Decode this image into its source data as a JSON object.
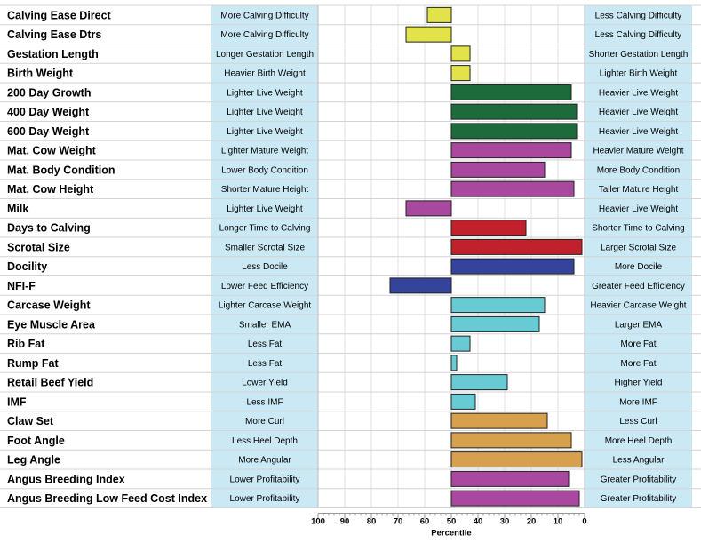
{
  "chart_data": {
    "type": "bar",
    "orientation": "horizontal",
    "title": "",
    "xlabel": "Percentile",
    "xlim": [
      100,
      0
    ],
    "baseline": 50,
    "xticks": [
      "100",
      "90",
      "80",
      "70",
      "60",
      "50",
      "40",
      "30",
      "20",
      "10",
      "0"
    ],
    "grid": true,
    "colors": {
      "yellow": "#e2e24a",
      "green": "#1d6b3a",
      "magenta": "#a8489e",
      "red": "#c0212a",
      "blue": "#34449a",
      "cyan": "#68cbd3",
      "orange": "#d6a04c",
      "panel": "#cbe9f5",
      "border": "#222222"
    },
    "rows": [
      {
        "trait": "Calving Ease Direct",
        "left": "More Calving Difficulty",
        "right": "Less Calving Difficulty",
        "value": 59,
        "color": "yellow"
      },
      {
        "trait": "Calving Ease Dtrs",
        "left": "More Calving Difficulty",
        "right": "Less Calving Difficulty",
        "value": 67,
        "color": "yellow"
      },
      {
        "trait": "Gestation Length",
        "left": "Longer Gestation Length",
        "right": "Shorter Gestation Length",
        "value": 43,
        "color": "yellow"
      },
      {
        "trait": "Birth Weight",
        "left": "Heavier Birth Weight",
        "right": "Lighter Birth Weight",
        "value": 43,
        "color": "yellow"
      },
      {
        "trait": "200 Day Growth",
        "left": "Lighter Live Weight",
        "right": "Heavier Live Weight",
        "value": 5,
        "color": "green"
      },
      {
        "trait": "400 Day Weight",
        "left": "Lighter Live Weight",
        "right": "Heavier Live Weight",
        "value": 3,
        "color": "green"
      },
      {
        "trait": "600 Day Weight",
        "left": "Lighter Live Weight",
        "right": "Heavier Live Weight",
        "value": 3,
        "color": "green"
      },
      {
        "trait": "Mat. Cow Weight",
        "left": "Lighter Mature Weight",
        "right": "Heavier Mature Weight",
        "value": 5,
        "color": "magenta"
      },
      {
        "trait": "Mat. Body Condition",
        "left": "Lower Body Condition",
        "right": "More Body Condition",
        "value": 15,
        "color": "magenta"
      },
      {
        "trait": "Mat. Cow Height",
        "left": "Shorter Mature Height",
        "right": "Taller Mature Height",
        "value": 4,
        "color": "magenta"
      },
      {
        "trait": "Milk",
        "left": "Lighter Live Weight",
        "right": "Heavier Live Weight",
        "value": 67,
        "color": "magenta"
      },
      {
        "trait": "Days to Calving",
        "left": "Longer Time to Calving",
        "right": "Shorter Time to Calving",
        "value": 22,
        "color": "red"
      },
      {
        "trait": "Scrotal Size",
        "left": "Smaller Scrotal Size",
        "right": "Larger Scrotal Size",
        "value": 1,
        "color": "red"
      },
      {
        "trait": "Docility",
        "left": "Less Docile",
        "right": "More Docile",
        "value": 4,
        "color": "blue"
      },
      {
        "trait": "NFI-F",
        "left": "Lower Feed Efficiency",
        "right": "Greater Feed Efficiency",
        "value": 73,
        "color": "blue"
      },
      {
        "trait": "Carcase Weight",
        "left": "Lighter Carcase Weight",
        "right": "Heavier Carcase Weight",
        "value": 15,
        "color": "cyan"
      },
      {
        "trait": "Eye Muscle Area",
        "left": "Smaller EMA",
        "right": "Larger EMA",
        "value": 17,
        "color": "cyan"
      },
      {
        "trait": "Rib Fat",
        "left": "Less Fat",
        "right": "More Fat",
        "value": 43,
        "color": "cyan"
      },
      {
        "trait": "Rump Fat",
        "left": "Less Fat",
        "right": "More Fat",
        "value": 48,
        "color": "cyan"
      },
      {
        "trait": "Retail Beef Yield",
        "left": "Lower Yield",
        "right": "Higher Yield",
        "value": 29,
        "color": "cyan"
      },
      {
        "trait": "IMF",
        "left": "Less IMF",
        "right": "More IMF",
        "value": 41,
        "color": "cyan"
      },
      {
        "trait": "Claw Set",
        "left": "More Curl",
        "right": "Less Curl",
        "value": 14,
        "color": "orange"
      },
      {
        "trait": "Foot Angle",
        "left": "Less Heel Depth",
        "right": "More Heel Depth",
        "value": 5,
        "color": "orange"
      },
      {
        "trait": "Leg Angle",
        "left": "More Angular",
        "right": "Less Angular",
        "value": 1,
        "color": "orange"
      },
      {
        "trait": "Angus Breeding Index",
        "left": "Lower Profitability",
        "right": "Greater Profitability",
        "value": 6,
        "color": "magenta"
      },
      {
        "trait": "Angus Breeding Low Feed Cost Index",
        "left": "Lower Profitability",
        "right": "Greater Profitability",
        "value": 2,
        "color": "magenta"
      }
    ]
  }
}
